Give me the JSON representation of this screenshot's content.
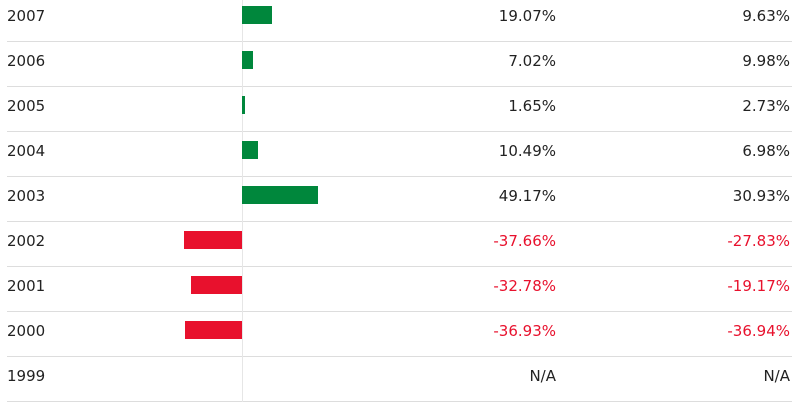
{
  "colors": {
    "positive": "#00873c",
    "negative": "#e8112d",
    "text": "#222222"
  },
  "chart_data": {
    "type": "bar",
    "categories": [
      "2007",
      "2006",
      "2005",
      "2004",
      "2003",
      "2002",
      "2001",
      "2000",
      "1999"
    ],
    "series": [
      {
        "values": [
          19.07,
          7.02,
          1.65,
          10.49,
          49.17,
          -37.66,
          -32.78,
          -36.93,
          null
        ]
      },
      {
        "values": [
          9.63,
          9.98,
          2.73,
          6.98,
          30.93,
          -27.83,
          -19.17,
          -36.94,
          null
        ]
      }
    ]
  },
  "rows": [
    {
      "year": "2007",
      "return": "19.07%",
      "benchmark": "9.63%"
    },
    {
      "year": "2006",
      "return": "7.02%",
      "benchmark": "9.98%"
    },
    {
      "year": "2005",
      "return": "1.65%",
      "benchmark": "2.73%"
    },
    {
      "year": "2004",
      "return": "10.49%",
      "benchmark": "6.98%"
    },
    {
      "year": "2003",
      "return": "49.17%",
      "benchmark": "30.93%"
    },
    {
      "year": "2002",
      "return": "-37.66%",
      "benchmark": "-27.83%"
    },
    {
      "year": "2001",
      "return": "-32.78%",
      "benchmark": "-19.17%"
    },
    {
      "year": "2000",
      "return": "-36.93%",
      "benchmark": "-36.94%"
    },
    {
      "year": "1999",
      "return": "N/A",
      "benchmark": "N/A"
    }
  ]
}
